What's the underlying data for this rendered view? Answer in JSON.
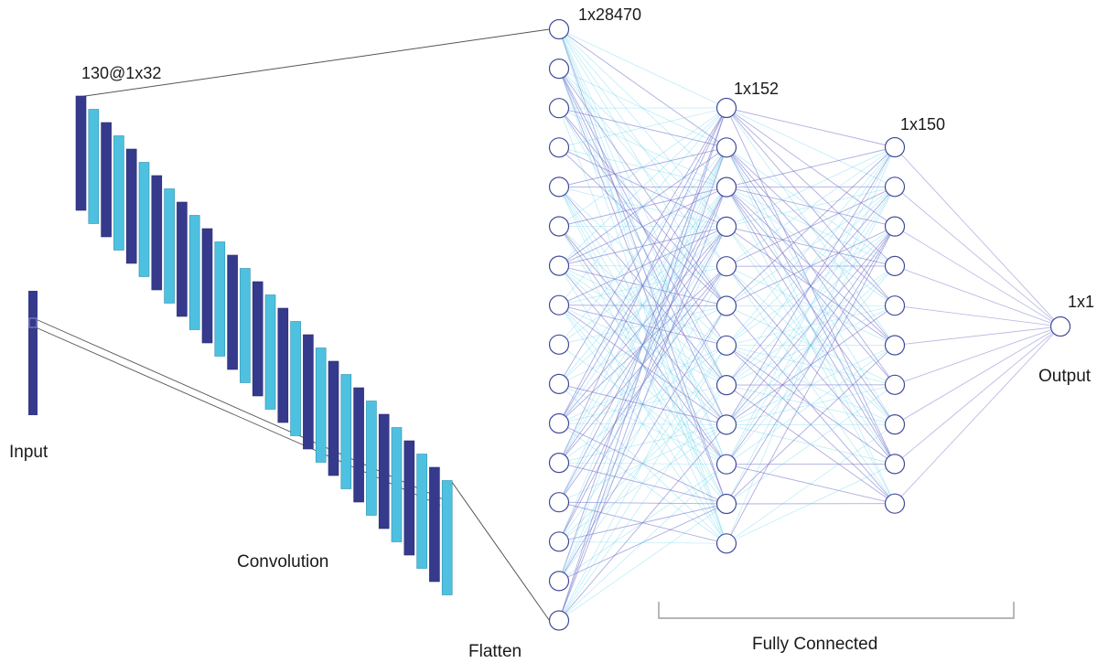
{
  "labels": {
    "conv_shape": "130@1x32",
    "flatten_shape": "1x28470",
    "fc1_shape": "1x152",
    "fc2_shape": "1x150",
    "output_shape": "1x1",
    "input": "Input",
    "convolution": "Convolution",
    "flatten": "Flatten",
    "output": "Output",
    "fully_connected": "Fully Connected"
  },
  "colors": {
    "dark_bar": "#363a8c",
    "light_bar": "#4ec1e0",
    "edge_dark": "#6a6ac8",
    "edge_light": "#5fd0ee",
    "node_stroke": "#3f4a9a",
    "line": "#555555"
  },
  "layers": {
    "conv_filters_shown": 30,
    "flatten_nodes_shown": 16,
    "fc1_nodes": 12,
    "fc2_nodes": 10,
    "output_nodes": 1
  }
}
